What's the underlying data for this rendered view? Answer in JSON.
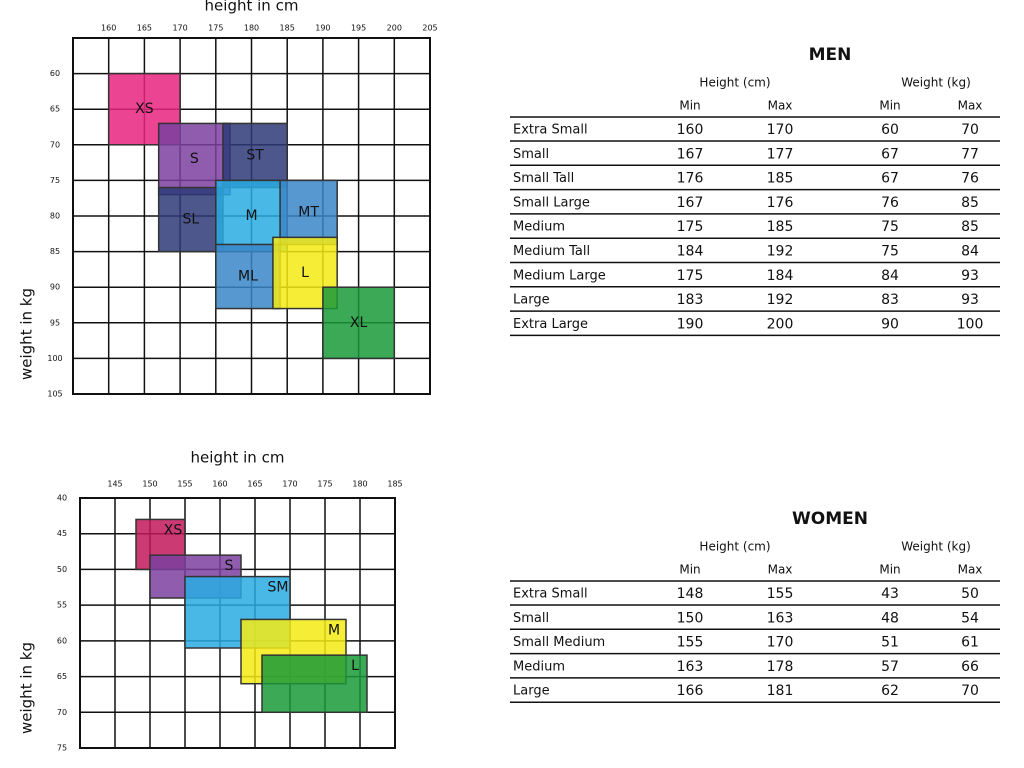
{
  "chart_data": [
    {
      "type": "range-box",
      "xlabel": "height in cm",
      "ylabel": "weight in kg",
      "xlim": [
        155,
        205
      ],
      "xticks": [
        160,
        165,
        170,
        175,
        180,
        185,
        190,
        195,
        200,
        205
      ],
      "ylim": [
        55,
        105
      ],
      "yticks": [
        60,
        65,
        70,
        75,
        80,
        85,
        90,
        95,
        100,
        105
      ],
      "series": [
        {
          "name": "XS",
          "color": "#e8237f",
          "x": [
            160,
            170
          ],
          "y": [
            60,
            70
          ]
        },
        {
          "name": "S",
          "color": "#7b3fa0",
          "x": [
            167,
            177
          ],
          "y": [
            67,
            77
          ]
        },
        {
          "name": "ST",
          "color": "#2e3a78",
          "x": [
            176,
            185
          ],
          "y": [
            67,
            76
          ]
        },
        {
          "name": "SL",
          "color": "#2e3a78",
          "x": [
            167,
            176
          ],
          "y": [
            76,
            85
          ]
        },
        {
          "name": "M",
          "color": "#29abe2",
          "x": [
            175,
            185
          ],
          "y": [
            75,
            85
          ]
        },
        {
          "name": "MT",
          "color": "#3a86c8",
          "x": [
            184,
            192
          ],
          "y": [
            75,
            84
          ]
        },
        {
          "name": "ML",
          "color": "#3a86c8",
          "x": [
            175,
            184
          ],
          "y": [
            84,
            93
          ]
        },
        {
          "name": "L",
          "color": "#f5ea14",
          "x": [
            183,
            192
          ],
          "y": [
            83,
            93
          ]
        },
        {
          "name": "XL",
          "color": "#1a9a3a",
          "x": [
            190,
            200
          ],
          "y": [
            90,
            100
          ]
        }
      ]
    },
    {
      "type": "range-box",
      "xlabel": "height in cm",
      "ylabel": "weight in kg",
      "xlim": [
        140,
        185
      ],
      "xticks": [
        145,
        150,
        155,
        160,
        165,
        170,
        175,
        180,
        185
      ],
      "ylim": [
        40,
        75
      ],
      "yticks": [
        40,
        45,
        50,
        55,
        60,
        65,
        70,
        75
      ],
      "series": [
        {
          "name": "XS",
          "color": "#c2185b",
          "x": [
            148,
            155
          ],
          "y": [
            43,
            50
          ]
        },
        {
          "name": "S",
          "color": "#7b3fa0",
          "x": [
            150,
            163
          ],
          "y": [
            48,
            54
          ]
        },
        {
          "name": "SM",
          "color": "#29abe2",
          "x": [
            155,
            170
          ],
          "y": [
            51,
            61
          ]
        },
        {
          "name": "M",
          "color": "#f5ea14",
          "x": [
            163,
            178
          ],
          "y": [
            57,
            66
          ]
        },
        {
          "name": "L",
          "color": "#1a9a3a",
          "x": [
            166,
            181
          ],
          "y": [
            62,
            70
          ]
        }
      ]
    }
  ],
  "tables": [
    {
      "title": "MEN",
      "groups": [
        "Height (cm)",
        "Weight (kg)"
      ],
      "subheaders": [
        "Min",
        "Max",
        "Min",
        "Max"
      ],
      "rows": [
        [
          "Extra Small",
          160,
          170,
          60,
          70
        ],
        [
          "Small",
          167,
          177,
          67,
          77
        ],
        [
          "Small Tall",
          176,
          185,
          67,
          76
        ],
        [
          "Small Large",
          167,
          176,
          76,
          85
        ],
        [
          "Medium",
          175,
          185,
          75,
          85
        ],
        [
          "Medium Tall",
          184,
          192,
          75,
          84
        ],
        [
          "Medium Large",
          175,
          184,
          84,
          93
        ],
        [
          "Large",
          183,
          192,
          83,
          93
        ],
        [
          "Extra Large",
          190,
          200,
          90,
          100
        ]
      ]
    },
    {
      "title": "WOMEN",
      "groups": [
        "Height (cm)",
        "Weight (kg)"
      ],
      "subheaders": [
        "Min",
        "Max",
        "Min",
        "Max"
      ],
      "rows": [
        [
          "Extra Small",
          148,
          155,
          43,
          50
        ],
        [
          "Small",
          150,
          163,
          48,
          54
        ],
        [
          "Small Medium",
          155,
          170,
          51,
          61
        ],
        [
          "Medium",
          163,
          178,
          57,
          66
        ],
        [
          "Large",
          166,
          181,
          62,
          70
        ]
      ]
    }
  ]
}
